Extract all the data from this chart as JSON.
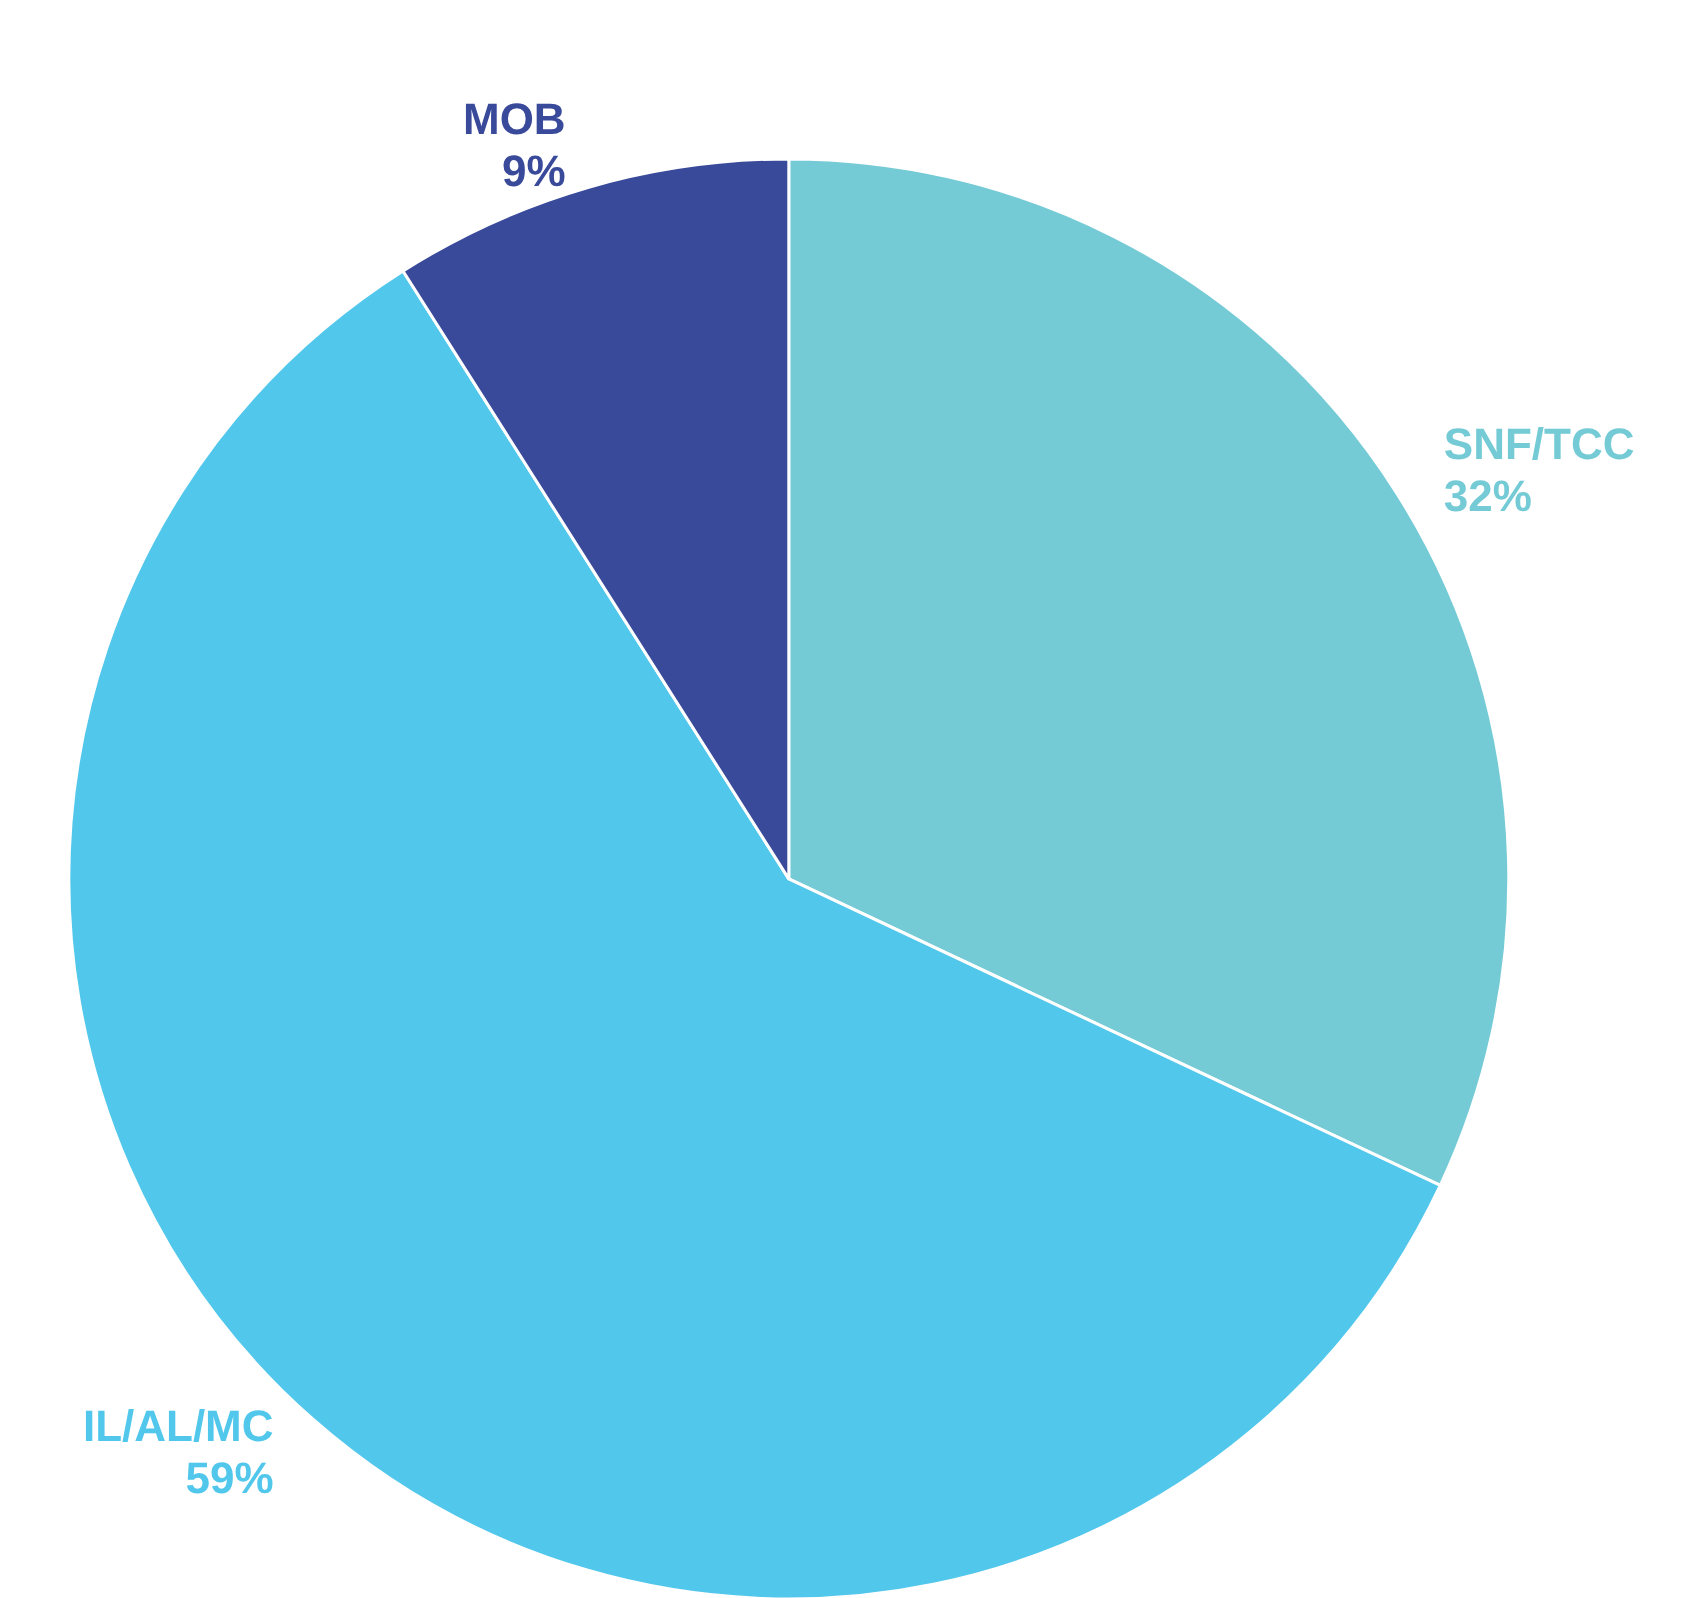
{
  "chart_data": {
    "type": "pie",
    "categories": [
      "SNF/TCC",
      "IL/AL/MC",
      "MOB"
    ],
    "values": [
      32,
      59,
      9
    ],
    "value_labels": [
      "32%",
      "59%",
      "9%"
    ],
    "colors": [
      "#74cbd6",
      "#52c7ec",
      "#3a4a9a"
    ],
    "legend": false
  }
}
